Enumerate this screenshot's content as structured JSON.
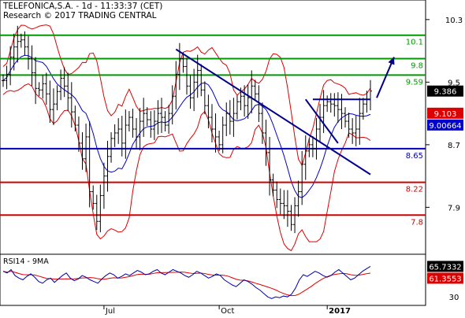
{
  "chart_data": {
    "type": "candlestick",
    "header": {
      "line1": "TELEFONICA,S.A. - 1d - 11:33:37 (CET)",
      "line2": "Research © 2017 TRADING CENTRAL"
    },
    "price_axis": {
      "ticks": [
        "10.3",
        "9.5",
        "8.7",
        "7.9"
      ],
      "tick_values": [
        10.3,
        9.5,
        8.7,
        7.9
      ],
      "range": [
        7.3,
        10.55
      ]
    },
    "time_axis": {
      "labels": [
        "Jul",
        "Oct",
        "2017"
      ]
    },
    "levels": [
      {
        "label": "10.1",
        "value": 10.1,
        "color": "#009900"
      },
      {
        "label": "9.8",
        "value": 9.8,
        "color": "#009900"
      },
      {
        "label": "9.59",
        "value": 9.59,
        "color": "#009900"
      },
      {
        "label": "8.65",
        "value": 8.65,
        "color": "#0000b0"
      },
      {
        "label": "8.22",
        "value": 8.22,
        "color": "#d00000"
      },
      {
        "label": "7.8",
        "value": 7.8,
        "color": "#d00000"
      }
    ],
    "badges": [
      {
        "label": "9.386",
        "value": 9.386,
        "bg": "#000000",
        "fg": "#ffffff"
      },
      {
        "label": "9.103",
        "value": 9.103,
        "bg": "#dd0000",
        "fg": "#ffffff"
      },
      {
        "label": "9.00664",
        "value": 9.00664,
        "bg": "#0000cc",
        "fg": "#ffffff"
      }
    ],
    "moving_average_color": "#0000cc",
    "bollinger_color": "#dd0000",
    "trendline_color": "#00008b",
    "forecast_arrow_color": "#00008b",
    "price_series": [
      9.52,
      9.6,
      9.82,
      9.95,
      10.02,
      10.04,
      9.95,
      9.8,
      9.62,
      9.42,
      9.4,
      9.48,
      9.35,
      9.15,
      9.22,
      9.38,
      9.55,
      9.45,
      9.3,
      9.12,
      8.95,
      8.72,
      8.52,
      8.8,
      8.1,
      7.95,
      7.72,
      8.05,
      8.3,
      8.55,
      8.78,
      8.85,
      8.9,
      8.72,
      8.95,
      9.05,
      8.9,
      8.8,
      9.0,
      9.1,
      9.02,
      8.9,
      9.0,
      9.1,
      9.05,
      8.95,
      9.1,
      9.32,
      9.6,
      9.8,
      9.7,
      9.45,
      9.3,
      9.5,
      9.65,
      9.4,
      9.2,
      9.05,
      8.9,
      8.8,
      8.7,
      8.95,
      9.1,
      9.0,
      9.1,
      9.25,
      9.32,
      9.2,
      9.3,
      9.45,
      9.35,
      9.1,
      8.85,
      8.6,
      8.25,
      8.12,
      8.0,
      7.95,
      7.92,
      7.85,
      7.68,
      7.92,
      8.1,
      8.45,
      8.62,
      8.7,
      8.65,
      8.9,
      9.05,
      9.2,
      9.25,
      9.22,
      9.2,
      9.15,
      9.1,
      9.0,
      8.9,
      8.85,
      8.9,
      9.1,
      9.22,
      9.28,
      9.386
    ],
    "rsi": {
      "label": "RSI14 - 9MA",
      "ticks": [
        "30"
      ],
      "tick_values": [
        30
      ],
      "range": [
        20,
        80
      ],
      "badges": [
        {
          "label": "65.7332",
          "value": 65.7332,
          "bg": "#000000",
          "fg": "#ffffff"
        },
        {
          "label": "61.3553",
          "value": 61.3553,
          "bg": "#dd0000",
          "fg": "#ffffff"
        }
      ],
      "values": [
        60,
        58,
        62,
        55,
        52,
        50,
        54,
        57,
        53,
        48,
        46,
        50,
        52,
        47,
        51,
        55,
        58,
        52,
        49,
        51,
        55,
        53,
        50,
        48,
        46,
        51,
        55,
        58,
        56,
        52,
        54,
        57,
        55,
        58,
        61,
        59,
        56,
        57,
        60,
        62,
        58,
        56,
        59,
        62,
        60,
        58,
        55,
        53,
        56,
        60,
        58,
        55,
        52,
        54,
        57,
        55,
        50,
        47,
        44,
        42,
        46,
        50,
        48,
        45,
        41,
        38,
        34,
        30,
        28,
        30,
        29,
        31,
        30,
        33,
        40,
        50,
        56,
        54,
        57,
        60,
        58,
        55,
        53,
        55,
        59,
        62,
        58,
        54,
        50,
        52,
        56,
        60,
        63,
        65.73
      ]
    }
  }
}
